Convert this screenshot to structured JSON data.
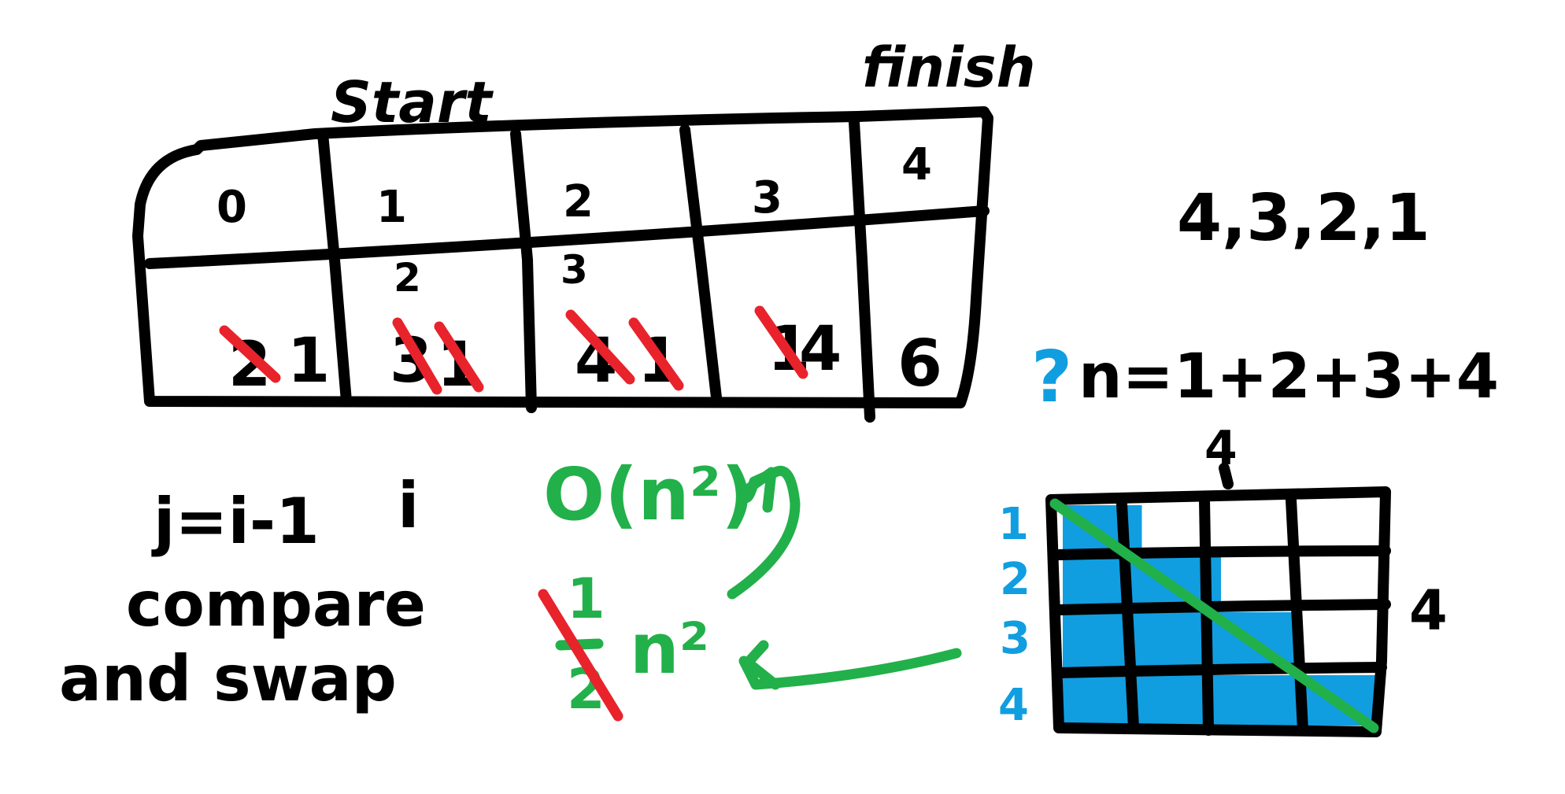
{
  "colors": {
    "ink": "#000000",
    "red": "#e8232b",
    "green": "#22b04a",
    "blue": "#109ee0",
    "background": "#ffffff"
  },
  "labels": {
    "start": "Start",
    "finish": "finish"
  },
  "array": {
    "indices": [
      "0",
      "1",
      "2",
      "3",
      "4"
    ],
    "cells": [
      {
        "crossed": "2",
        "value": "1",
        "note": ""
      },
      {
        "crossed": "3",
        "value": "1",
        "note": "2"
      },
      {
        "crossed": "4",
        "value": "1",
        "note": "3"
      },
      {
        "crossed": "1",
        "value": "4",
        "note": ""
      },
      {
        "crossed": "",
        "value": "6",
        "note": ""
      }
    ],
    "extra_cross": "1"
  },
  "sequence": "4,3,2,1",
  "formula": {
    "question": "?",
    "text": "n=1+2+3+4"
  },
  "loop": {
    "line1": "j=i-1",
    "i_label": "i",
    "line2": "compare",
    "line3": "and swap"
  },
  "complexity": {
    "big_o": "O(n²)",
    "fraction_top": "1",
    "fraction_bottom": "2",
    "n_squared": "n²"
  },
  "grid": {
    "top_label": "4",
    "side_label": "4",
    "rows": [
      "1",
      "2",
      "3",
      "4"
    ],
    "fill_fractions": [
      0.25,
      0.5,
      0.75,
      1.0
    ]
  }
}
